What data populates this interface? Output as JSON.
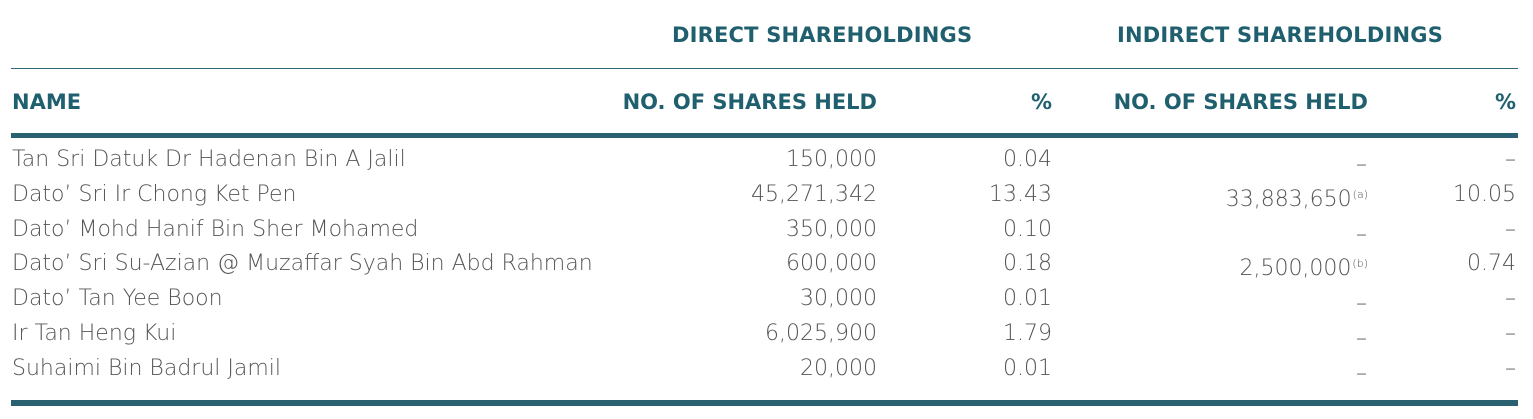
{
  "header": {
    "direct_group": "DIRECT SHAREHOLDINGS",
    "indirect_group": "INDIRECT SHAREHOLDINGS",
    "col_name": "NAME",
    "col_direct_shares": "NO. OF SHARES HELD",
    "col_direct_pct": "%",
    "col_indirect_shares": "NO. OF SHARES HELD",
    "col_indirect_pct": "%"
  },
  "rows": [
    {
      "name": "Tan Sri Datuk Dr Hadenan Bin A Jalil",
      "direct_shares": "150,000",
      "direct_pct": "0.04",
      "indirect_shares": "–",
      "indirect_note": "",
      "indirect_pct": "–"
    },
    {
      "name": "Dato’ Sri Ir Chong Ket Pen",
      "direct_shares": "45,271,342",
      "direct_pct": "13.43",
      "indirect_shares": "33,883,650",
      "indirect_note": "(a)",
      "indirect_pct": "10.05"
    },
    {
      "name": "Dato’ Mohd Hanif Bin Sher Mohamed",
      "direct_shares": "350,000",
      "direct_pct": "0.10",
      "indirect_shares": "–",
      "indirect_note": "",
      "indirect_pct": "–"
    },
    {
      "name": "Dato’ Sri Su-Azian @ Muzaffar Syah Bin Abd Rahman",
      "direct_shares": "600,000",
      "direct_pct": "0.18",
      "indirect_shares": "2,500,000",
      "indirect_note": "(b)",
      "indirect_pct": "0.74"
    },
    {
      "name": "Dato’ Tan Yee Boon",
      "direct_shares": "30,000",
      "direct_pct": "0.01",
      "indirect_shares": "–",
      "indirect_note": "",
      "indirect_pct": "–"
    },
    {
      "name": "Ir Tan Heng Kui",
      "direct_shares": "6,025,900",
      "direct_pct": "1.79",
      "indirect_shares": "–",
      "indirect_note": "",
      "indirect_pct": "–"
    },
    {
      "name": "Suhaimi Bin Badrul Jamil",
      "direct_shares": "20,000",
      "direct_pct": "0.01",
      "indirect_shares": "–",
      "indirect_note": "",
      "indirect_pct": "–"
    }
  ],
  "colors": {
    "heading": "#1f5f6e",
    "rule": "#2a6170",
    "text": "#555555"
  }
}
